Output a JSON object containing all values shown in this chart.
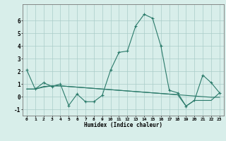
{
  "x": [
    0,
    1,
    2,
    3,
    4,
    5,
    6,
    7,
    8,
    9,
    10,
    11,
    12,
    13,
    14,
    15,
    16,
    17,
    18,
    19,
    20,
    21,
    22,
    23
  ],
  "y_main": [
    2.1,
    0.6,
    1.1,
    0.8,
    1.0,
    -0.7,
    0.2,
    -0.4,
    -0.4,
    0.1,
    2.1,
    3.5,
    3.6,
    5.6,
    6.5,
    6.2,
    4.0,
    0.5,
    0.3,
    -0.75,
    -0.3,
    1.7,
    1.1,
    0.3
  ],
  "y_line2": [
    0.6,
    0.6,
    0.8,
    0.85,
    0.85,
    0.8,
    0.75,
    0.7,
    0.65,
    0.6,
    0.55,
    0.5,
    0.45,
    0.4,
    0.35,
    0.3,
    0.25,
    0.2,
    0.15,
    0.1,
    0.05,
    0.0,
    -0.05,
    -0.05
  ],
  "y_line3": [
    0.6,
    0.6,
    0.75,
    0.85,
    0.85,
    0.8,
    0.75,
    0.7,
    0.65,
    0.6,
    0.55,
    0.5,
    0.45,
    0.4,
    0.35,
    0.3,
    0.25,
    0.2,
    0.15,
    -0.75,
    -0.3,
    -0.3,
    -0.3,
    0.3
  ],
  "line_color": "#2a7a6a",
  "bg_color": "#d8eeea",
  "grid_color": "#aaccc8",
  "xlabel": "Humidex (Indice chaleur)",
  "ylabel_ticks": [
    "-1",
    "0",
    "1",
    "2",
    "3",
    "4",
    "5",
    "6"
  ],
  "ylim": [
    -1.5,
    7.3
  ],
  "xlim": [
    -0.5,
    23.5
  ],
  "yticks": [
    -1,
    0,
    1,
    2,
    3,
    4,
    5,
    6
  ],
  "xticks": [
    0,
    1,
    2,
    3,
    4,
    5,
    6,
    7,
    8,
    9,
    10,
    11,
    12,
    13,
    14,
    15,
    16,
    17,
    18,
    19,
    20,
    21,
    22,
    23
  ]
}
